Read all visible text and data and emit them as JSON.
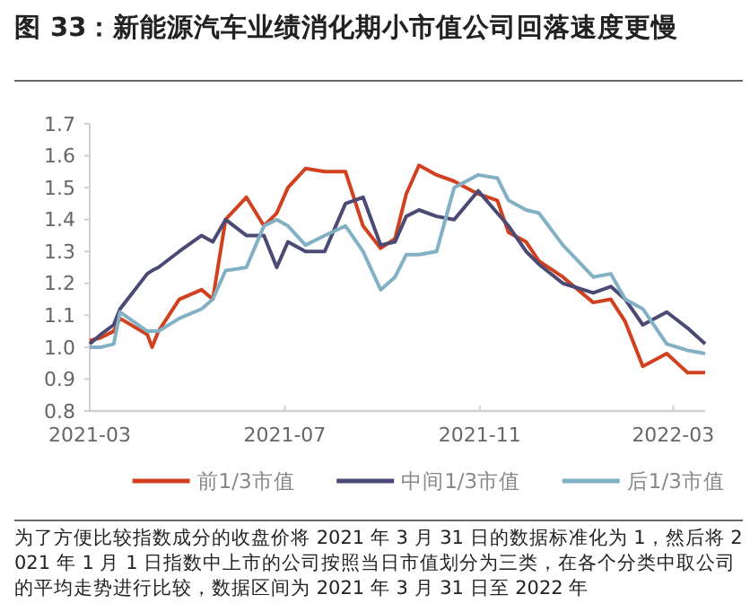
{
  "chart_data": {
    "type": "line",
    "title": "图 33：新能源汽车业绩消化期小市值公司回落速度更慢",
    "x": [
      "2021-03-31",
      "2021-04-07",
      "2021-04-15",
      "2021-04-19",
      "2021-05-06",
      "2021-05-09",
      "2021-05-13",
      "2021-05-26",
      "2021-06-09",
      "2021-06-16",
      "2021-06-24",
      "2021-07-07",
      "2021-07-18",
      "2021-07-26",
      "2021-08-02",
      "2021-08-13",
      "2021-08-25",
      "2021-09-07",
      "2021-09-18",
      "2021-09-29",
      "2021-10-08",
      "2021-10-15",
      "2021-10-23",
      "2021-11-03",
      "2021-11-14",
      "2021-11-29",
      "2021-12-11",
      "2021-12-18",
      "2021-12-29",
      "2022-01-06",
      "2022-01-21",
      "2022-02-09",
      "2022-02-20",
      "2022-03-01",
      "2022-03-12",
      "2022-03-27",
      "2022-04-09",
      "2022-04-20"
    ],
    "series": [
      {
        "name": "前1/3市值",
        "color": "#d2411f",
        "values": [
          1.02,
          1.03,
          1.05,
          1.09,
          1.04,
          1.0,
          1.05,
          1.15,
          1.18,
          1.15,
          1.4,
          1.47,
          1.38,
          1.42,
          1.5,
          1.56,
          1.55,
          1.55,
          1.38,
          1.31,
          1.34,
          1.48,
          1.57,
          1.54,
          1.52,
          1.48,
          1.46,
          1.36,
          1.33,
          1.27,
          1.22,
          1.14,
          1.15,
          1.08,
          0.94,
          0.98,
          0.92,
          0.92
        ]
      },
      {
        "name": "中间1/3市值",
        "color": "#4a4a74",
        "values": [
          1.01,
          1.04,
          1.07,
          1.12,
          1.23,
          1.24,
          1.25,
          1.3,
          1.35,
          1.33,
          1.4,
          1.35,
          1.35,
          1.25,
          1.33,
          1.3,
          1.3,
          1.45,
          1.47,
          1.32,
          1.33,
          1.41,
          1.43,
          1.41,
          1.4,
          1.49,
          1.42,
          1.38,
          1.3,
          1.26,
          1.2,
          1.17,
          1.19,
          1.15,
          1.07,
          1.11,
          1.06,
          1.01
        ]
      },
      {
        "name": "后1/3市值",
        "color": "#82b0c4",
        "values": [
          1.0,
          1.0,
          1.01,
          1.11,
          1.05,
          1.05,
          1.05,
          1.09,
          1.12,
          1.15,
          1.24,
          1.25,
          1.38,
          1.4,
          1.38,
          1.32,
          1.35,
          1.38,
          1.3,
          1.18,
          1.22,
          1.29,
          1.29,
          1.3,
          1.5,
          1.54,
          1.53,
          1.46,
          1.43,
          1.42,
          1.32,
          1.22,
          1.23,
          1.15,
          1.12,
          1.01,
          0.99,
          0.98
        ]
      }
    ],
    "xlim": [
      "2021-03-31",
      "2022-04-20"
    ],
    "xticks": [
      {
        "value": "2021-03-31",
        "label": "2021-03"
      },
      {
        "value": "2021-07-31",
        "label": "2021-07"
      },
      {
        "value": "2021-11-30",
        "label": "2021-11"
      },
      {
        "value": "2022-03-31",
        "label": "2022-03"
      }
    ],
    "ylim": [
      0.8,
      1.7
    ],
    "yticks": [
      {
        "value": 0.8,
        "label": "0.8"
      },
      {
        "value": 0.9,
        "label": "0.9"
      },
      {
        "value": 1.0,
        "label": "1.0"
      },
      {
        "value": 1.1,
        "label": "1.1"
      },
      {
        "value": 1.2,
        "label": "1.2"
      },
      {
        "value": 1.3,
        "label": "1.3"
      },
      {
        "value": 1.4,
        "label": "1.4"
      },
      {
        "value": 1.5,
        "label": "1.5"
      },
      {
        "value": 1.6,
        "label": "1.6"
      },
      {
        "value": 1.7,
        "label": "1.7"
      }
    ],
    "legend": "bottom",
    "grid": false,
    "marker": "none",
    "line_style": "solid",
    "annotations": [
      "为了方便比较指数成分的收盘价将 2021 年 3 月 31 日的数据标准化为 1，然后将 2021 年 1 月 1 日指数中上市的公司按照当日市值划分为三类，在各个分类中取公司的平均走势进行比较，数据区间为 2021 年 3 月 31 日至 2022 年"
    ]
  }
}
